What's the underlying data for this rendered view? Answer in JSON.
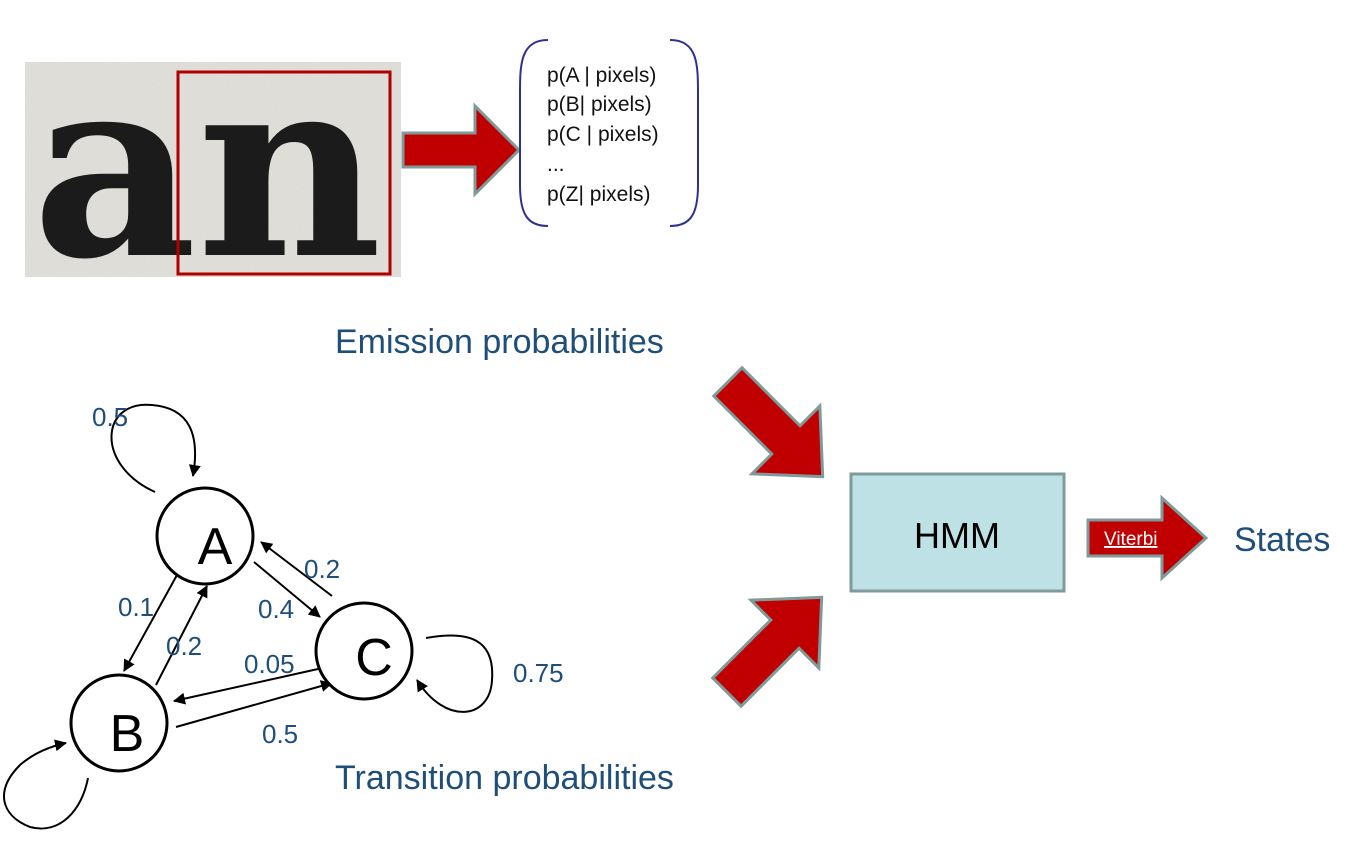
{
  "scan": {
    "text": "an"
  },
  "emission_list": [
    "p(A | pixels)",
    "p(B| pixels)",
    "p(C | pixels)",
    "...",
    "p(Z| pixels)"
  ],
  "captions": {
    "emission": "Emission probabilities",
    "transition": "Transition probabilities"
  },
  "nodes": {
    "a": "A",
    "b": "B",
    "c": "C"
  },
  "edges": {
    "a_self": "0.5",
    "a_to_b": "0.1",
    "b_to_a": "0.2",
    "c_to_a": "0.2",
    "a_to_c": "0.4",
    "c_to_b": "0.05",
    "b_to_c": "0.5",
    "c_self": "0.75"
  },
  "hmm": {
    "label": "HMM"
  },
  "viterbi": {
    "label": "Viterbi"
  },
  "output": {
    "label": "States"
  },
  "colors": {
    "arrow_fill": "#c00000",
    "arrow_stroke": "#7f9a9a",
    "hmm_fill": "#bde1e4",
    "hmm_stroke": "#7f9a9a",
    "caption": "#1f4e79",
    "highlight_box": "#b00000",
    "brace": "#2e3192"
  }
}
